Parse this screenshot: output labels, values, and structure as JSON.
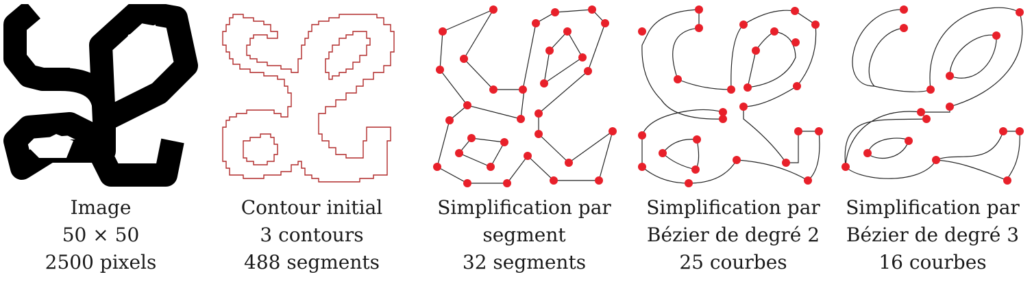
{
  "panels": [
    {
      "id": "image",
      "lines": [
        "Image",
        "50 × 50",
        "2500 pixels"
      ]
    },
    {
      "id": "contour",
      "lines": [
        "Contour initial",
        "3 contours",
        "488 segments"
      ]
    },
    {
      "id": "segment",
      "lines": [
        "Simplification par",
        "segment",
        "32 segments"
      ]
    },
    {
      "id": "bezier2",
      "lines": [
        "Simplification par",
        "Bézier de degré 2",
        "25 courbes"
      ]
    },
    {
      "id": "bezier3",
      "lines": [
        "Simplification par",
        "Bézier de degré 3",
        "16 courbes"
      ]
    }
  ],
  "colors": {
    "glyph": "#000000",
    "contour": "#b02828",
    "curve": "#222222",
    "point": "#e8202a"
  }
}
